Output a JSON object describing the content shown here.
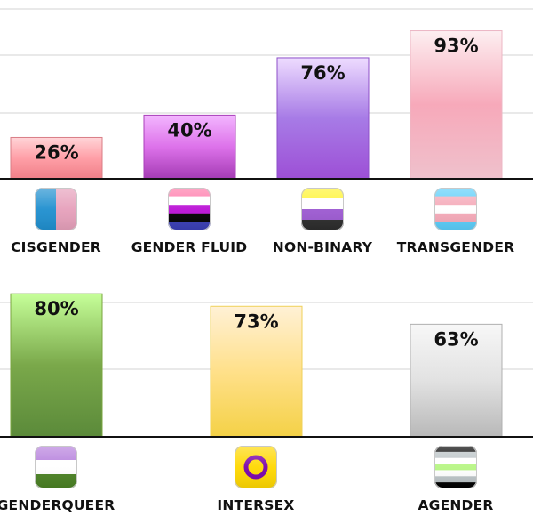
{
  "chart_data": [
    {
      "type": "bar",
      "categories": [
        "CISGENDER",
        "GENDER FLUID",
        "NON-BINARY",
        "TRANSGENDER"
      ],
      "values": [
        26,
        40,
        76,
        93
      ],
      "value_labels": [
        "26%",
        "40%",
        "76%",
        "93%"
      ],
      "ylim": [
        0,
        100
      ],
      "grid": true,
      "icons": [
        "cisgender-flag-icon",
        "gender-fluid-flag-icon",
        "non-binary-flag-icon",
        "transgender-flag-icon"
      ],
      "bar_gradients": [
        [
          "#ffd5d8",
          "#ff9fa7",
          "#f07f88"
        ],
        [
          "#f3b6ff",
          "#dd72ea",
          "#a43bb4"
        ],
        [
          "#eedcff",
          "#a77be6",
          "#9d4fd6"
        ],
        [
          "#fdeff1",
          "#f7a9ba",
          "#efc1cc"
        ]
      ]
    },
    {
      "type": "bar",
      "categories": [
        "GENDERQUEER",
        "INTERSEX",
        "AGENDER"
      ],
      "values": [
        80,
        73,
        63
      ],
      "value_labels": [
        "80%",
        "73%",
        "63%"
      ],
      "ylim": [
        0,
        100
      ],
      "grid": true,
      "icons": [
        "genderqueer-flag-icon",
        "intersex-flag-icon",
        "agender-flag-icon"
      ],
      "bar_gradients": [
        [
          "#c6ff99",
          "#7aa84a",
          "#5b8a3a"
        ],
        [
          "#fff1d6",
          "#ffe08a",
          "#f4d146"
        ],
        [
          "#f7f7f7",
          "#e2e2e2",
          "#b8b8b8"
        ]
      ]
    }
  ]
}
